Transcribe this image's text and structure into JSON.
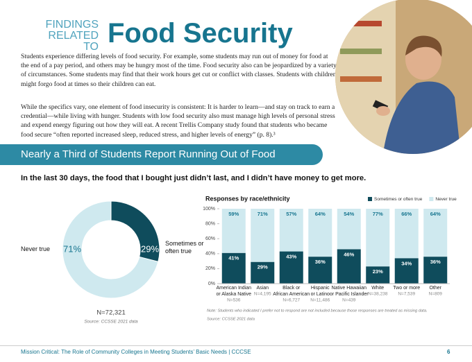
{
  "header": {
    "kicker": [
      "FINDINGS",
      "RELATED TO"
    ],
    "title": "Food Security"
  },
  "paragraphs": [
    "Students experience differing levels of food security. For example, some students may run out of money for food at the end of a pay period, and others may be hungry most of the time. Food security also can be jeopardized by a variety of circumstances. Some students may find that their work hours get cut or conflict with classes. Students with children might forgo food at times so their children can eat.",
    "While the specifics vary, one element of food insecurity is consistent: It is harder to learn—and stay on track to earn a credential—while living with hunger. Students with low food security also must manage high levels of personal stress and expend energy figuring out how they will eat. A recent Trellis Company study found that students who became food secure “often reported increased sleep, reduced stress, and higher levels of energy” (p. 8).³"
  ],
  "banner": "Nearly a Third of Students Report Running Out of Food",
  "question": "In the last 30 days, the food that I bought just didn’t last, and I didn’t have money to get more.",
  "chart_data": [
    {
      "type": "pie",
      "categories": [
        "Sometimes or often true",
        "Never true"
      ],
      "values": [
        29,
        71
      ],
      "value_labels": [
        "29%",
        "71%"
      ],
      "colors": [
        "#0f4c5c",
        "#cfe9ef"
      ],
      "total_label": "N=72,321",
      "source": "Source: CCSSE 2021 data"
    },
    {
      "type": "bar",
      "stacked": true,
      "title": "Responses by race/ethnicity",
      "categories": [
        [
          "American Indian",
          "or Alaska Native"
        ],
        [
          "Asian"
        ],
        [
          "Black or",
          "African American"
        ],
        [
          "Hispanic",
          "or Latino"
        ],
        [
          "Native Hawaiian",
          "or Pacific Islander"
        ],
        [
          "White"
        ],
        [
          "Two or more"
        ],
        [
          "Other"
        ]
      ],
      "category_n": [
        "N=536",
        "N=4,195",
        "N=6,727",
        "N=11,486",
        "N=439",
        "N=38,238",
        "N=7,539",
        "N=809"
      ],
      "series": [
        {
          "name": "Sometimes or often true",
          "color": "#0f4c5c",
          "values": [
            41,
            29,
            43,
            36,
            46,
            23,
            34,
            36
          ],
          "value_labels": [
            "41%",
            "29%",
            "43%",
            "36%",
            "46%",
            "23%",
            "34%",
            "36%"
          ]
        },
        {
          "name": "Never true",
          "color": "#cfe9ef",
          "values": [
            59,
            71,
            57,
            64,
            54,
            77,
            66,
            64
          ],
          "value_labels": [
            "59%",
            "71%",
            "57%",
            "64%",
            "54%",
            "77%",
            "66%",
            "64%"
          ]
        }
      ],
      "ylim": [
        0,
        100
      ],
      "yticks": [
        {
          "value": 0,
          "label": "0%"
        },
        {
          "value": 20,
          "label": "20%"
        },
        {
          "value": 40,
          "label": "40%"
        },
        {
          "value": 60,
          "label": "60%"
        },
        {
          "value": 80,
          "label": "80%"
        },
        {
          "value": 100,
          "label": "100%"
        }
      ],
      "legend": "top-right",
      "note": "Note: Students who indicated I prefer not to respond are not included because those responses are treated as missing data.",
      "source": "Source: CCSSE 2021 data"
    }
  ],
  "footer": {
    "text": "Mission Critical: The Role of Community Colleges in Meeting Students’ Basic Needs | CCCSE",
    "page": "6"
  }
}
